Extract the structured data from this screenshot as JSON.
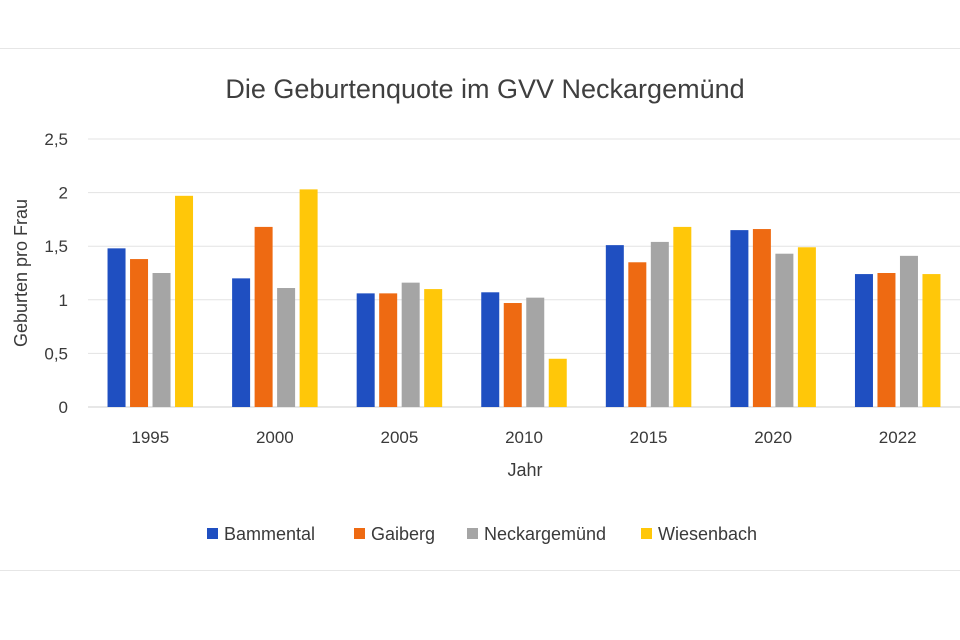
{
  "chart_data": {
    "type": "bar",
    "title": "Die Geburtenquote im GVV Neckargemünd",
    "xlabel": "Jahr",
    "ylabel": "Geburten pro Frau",
    "categories": [
      "1995",
      "2000",
      "2005",
      "2010",
      "2015",
      "2020",
      "2022"
    ],
    "ylim": [
      0,
      2.5
    ],
    "yticks": [
      0,
      0.5,
      1,
      1.5,
      2,
      2.5
    ],
    "ytick_labels": [
      "0",
      "0,5",
      "1",
      "1,5",
      "2",
      "2,5"
    ],
    "grid": true,
    "legend_position": "bottom",
    "series": [
      {
        "name": "Bammental",
        "color": "#1f4fc1",
        "values": [
          1.48,
          1.2,
          1.06,
          1.07,
          1.51,
          1.65,
          1.24
        ]
      },
      {
        "name": "Gaiberg",
        "color": "#ee6a12",
        "values": [
          1.38,
          1.68,
          1.06,
          0.97,
          1.35,
          1.66,
          1.25
        ]
      },
      {
        "name": "Neckargemünd",
        "color": "#a5a5a5",
        "values": [
          1.25,
          1.11,
          1.16,
          1.02,
          1.54,
          1.43,
          1.41
        ]
      },
      {
        "name": "Wiesenbach",
        "color": "#ffc709",
        "values": [
          1.97,
          2.03,
          1.1,
          0.45,
          1.68,
          1.49,
          1.24
        ]
      }
    ]
  }
}
